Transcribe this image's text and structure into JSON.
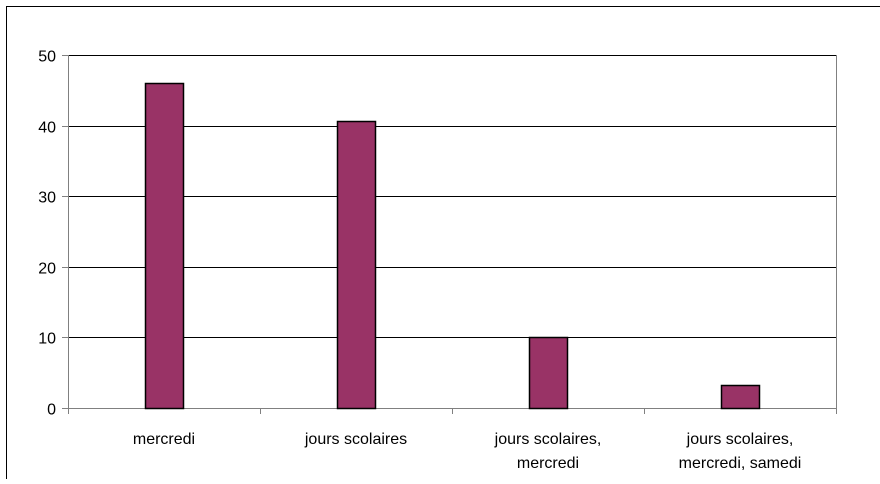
{
  "chart_data": {
    "type": "bar",
    "title": "",
    "xlabel": "",
    "ylabel": "",
    "categories": [
      [
        "mercredi"
      ],
      [
        "jours scolaires"
      ],
      [
        "jours scolaires,",
        "mercredi"
      ],
      [
        "jours scolaires,",
        "mercredi, samedi"
      ]
    ],
    "values": [
      46,
      40.7,
      10,
      3.2
    ],
    "ylim": [
      0,
      50
    ],
    "yticks": [
      "0",
      "10",
      "20",
      "30",
      "40",
      "50"
    ],
    "grid": true,
    "legend": "none",
    "colors": {
      "bar": "#993366",
      "bar_stroke": "#000000",
      "grid": "#000000",
      "axis": "#808080"
    }
  }
}
